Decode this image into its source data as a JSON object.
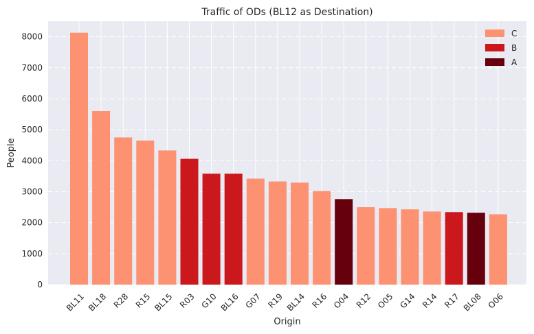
{
  "colors": {
    "background": "#eaeaf2",
    "grid": "#ffffff",
    "C": "#fc9272",
    "B": "#cb181d",
    "A": "#67000d"
  },
  "chart_data": {
    "type": "bar",
    "title": "Traffic of ODs (BL12 as Destination)",
    "xlabel": "Origin",
    "ylabel": "People",
    "ylim": [
      0,
      8500
    ],
    "yticks": [
      0,
      1000,
      2000,
      3000,
      4000,
      5000,
      6000,
      7000,
      8000
    ],
    "grid": true,
    "legend_position": "top-right",
    "legend": [
      {
        "label": "C",
        "class": "C"
      },
      {
        "label": "B",
        "class": "B"
      },
      {
        "label": "A",
        "class": "A"
      }
    ],
    "categories": [
      "BL11",
      "BL18",
      "R28",
      "R15",
      "BL15",
      "R03",
      "G10",
      "BL16",
      "G07",
      "R19",
      "BL14",
      "R16",
      "O04",
      "R12",
      "O05",
      "G14",
      "R14",
      "R17",
      "BL08",
      "O06"
    ],
    "values": [
      8130,
      5600,
      4750,
      4650,
      4330,
      4060,
      3580,
      3580,
      3420,
      3330,
      3290,
      3020,
      2760,
      2500,
      2470,
      2430,
      2360,
      2340,
      2320,
      2270
    ],
    "classes": [
      "C",
      "C",
      "C",
      "C",
      "C",
      "B",
      "B",
      "B",
      "C",
      "C",
      "C",
      "C",
      "A",
      "C",
      "C",
      "C",
      "C",
      "B",
      "A",
      "C"
    ]
  }
}
